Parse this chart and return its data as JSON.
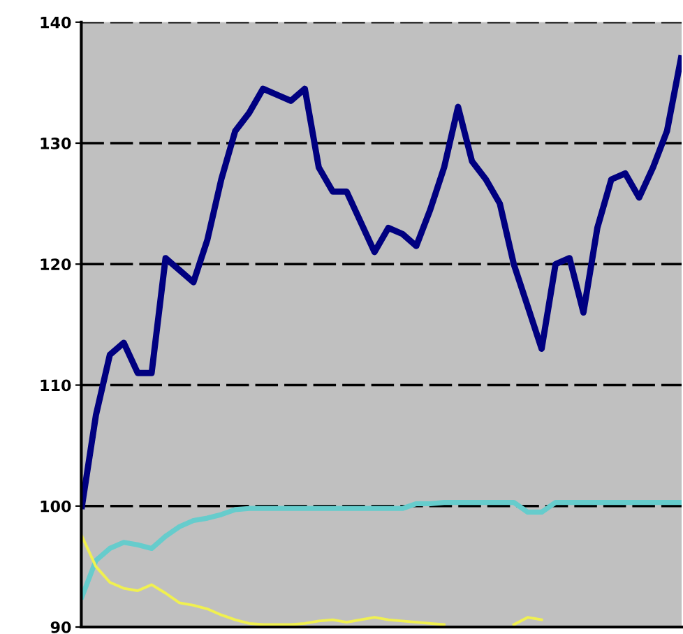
{
  "chart_data": {
    "type": "line",
    "categories": [
      null,
      null,
      null,
      null,
      null,
      null,
      null,
      null,
      null,
      null,
      null,
      null,
      null,
      null,
      null,
      null,
      null,
      null,
      null,
      null,
      null,
      null,
      null,
      null,
      null,
      null,
      null,
      null,
      null,
      null,
      null,
      null,
      null,
      null,
      null,
      null,
      null,
      null,
      null,
      null,
      null,
      null,
      null,
      null
    ],
    "series": [
      {
        "color": "#000080",
        "values": [
          100,
          107.5,
          112.5,
          113.5,
          111,
          111,
          120.5,
          119.5,
          118.5,
          122,
          127,
          131,
          132.5,
          134.5,
          134,
          133.5,
          134.5,
          128,
          126,
          126,
          123.5,
          121,
          123,
          122.5,
          121.5,
          124.5,
          128,
          133,
          128.5,
          127,
          125,
          120,
          116.5,
          113,
          120,
          120.5,
          116,
          123,
          127,
          127.5,
          125.5,
          128,
          131,
          137
        ]
      },
      {
        "color": "#66cccc",
        "values": [
          92.5,
          95.5,
          96.5,
          97,
          96.8,
          96.5,
          97.5,
          98.3,
          98.8,
          99,
          99.3,
          99.7,
          99.8,
          99.8,
          99.8,
          99.8,
          99.8,
          99.8,
          99.8,
          99.8,
          99.8,
          99.8,
          99.8,
          99.8,
          100.2,
          100.2,
          100.3,
          100.3,
          100.3,
          100.3,
          100.3,
          100.3,
          99.5,
          99.5,
          100.3,
          100.3,
          100.3,
          100.3,
          100.3,
          100.3,
          100.3,
          100.3,
          100.3,
          100.3
        ]
      },
      {
        "color": "#f0f050",
        "values": [
          97.5,
          95,
          93.7,
          93.2,
          93,
          93.5,
          92.8,
          92,
          91.8,
          91.5,
          91,
          90.6,
          90.3,
          90.2,
          90.2,
          90.2,
          90.3,
          90.5,
          90.6,
          90.4,
          90.6,
          90.8,
          90.6,
          90.5,
          90.4,
          90.3,
          90.2,
          null,
          null,
          null,
          null,
          90.2,
          90.8,
          90.6,
          null,
          null,
          null,
          null,
          null,
          null,
          null,
          null,
          null,
          null
        ]
      }
    ],
    "ylim": [
      90,
      140
    ],
    "yticks": [
      90,
      100,
      110,
      120,
      130,
      140
    ],
    "grid": "y",
    "legend": false,
    "marker": "none",
    "line_style": "solid"
  }
}
